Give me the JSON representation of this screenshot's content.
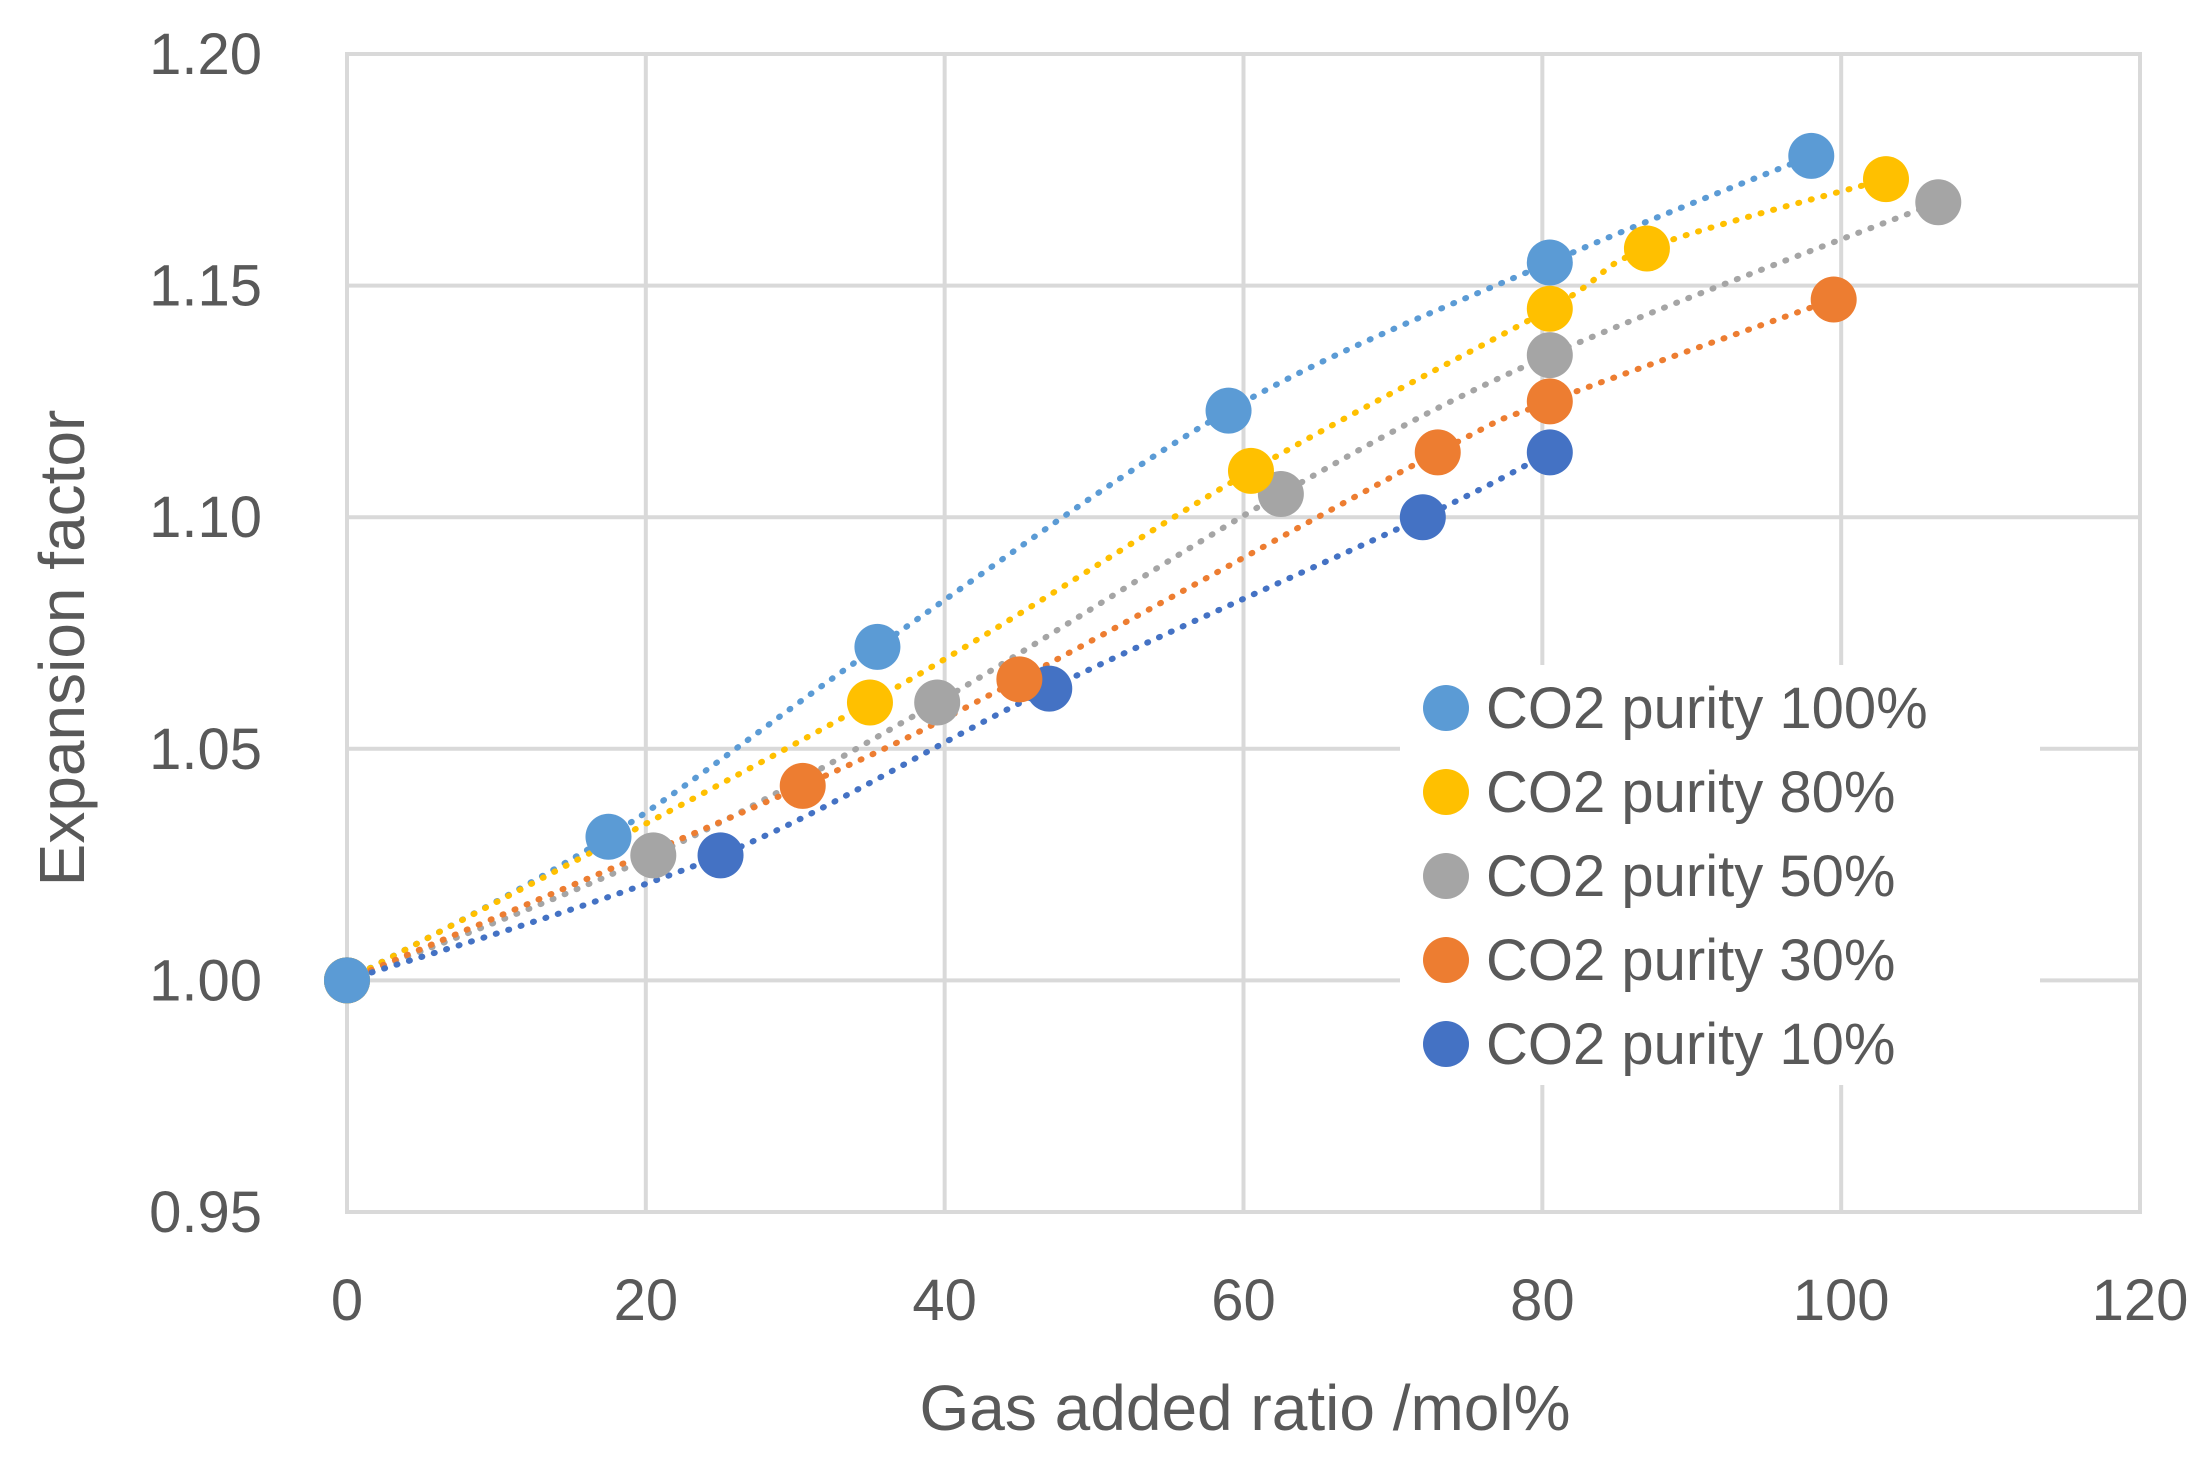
{
  "chart_data": {
    "type": "scatter",
    "title": "",
    "xlabel": "Gas added ratio /mol%",
    "ylabel": "Expansion factor",
    "xlim": [
      0,
      120
    ],
    "ylim": [
      0.95,
      1.2
    ],
    "x_ticks": [
      0,
      20,
      40,
      60,
      80,
      100,
      120
    ],
    "y_ticks": [
      0.95,
      1.0,
      1.05,
      1.1,
      1.15,
      1.2
    ],
    "x_tick_labels": [
      "0",
      "20",
      "40",
      "60",
      "80",
      "100",
      "120"
    ],
    "y_tick_labels": [
      "0.95",
      "1.00",
      "1.05",
      "1.10",
      "1.15",
      "1.20"
    ],
    "grid": true,
    "legend_position": "lower-right",
    "series": [
      {
        "name": "CO2 purity 100%",
        "color": "#5B9BD5",
        "points": [
          [
            0,
            1.0
          ],
          [
            17.5,
            1.031
          ],
          [
            35.5,
            1.072
          ],
          [
            59,
            1.123
          ],
          [
            80.5,
            1.155
          ],
          [
            98,
            1.178
          ]
        ]
      },
      {
        "name": "CO2 purity 80%",
        "color": "#FFC000",
        "points": [
          [
            0,
            1.0
          ],
          [
            35,
            1.06
          ],
          [
            60.5,
            1.11
          ],
          [
            80.5,
            1.145
          ],
          [
            87,
            1.158
          ],
          [
            103,
            1.173
          ]
        ]
      },
      {
        "name": "CO2 purity 50%",
        "color": "#A5A5A5",
        "points": [
          [
            0,
            1.0
          ],
          [
            20.5,
            1.027
          ],
          [
            39.5,
            1.06
          ],
          [
            62.5,
            1.105
          ],
          [
            80.5,
            1.135
          ],
          [
            106.5,
            1.168
          ]
        ]
      },
      {
        "name": "CO2 purity 30%",
        "color": "#ED7D31",
        "points": [
          [
            0,
            1.0
          ],
          [
            30.5,
            1.042
          ],
          [
            45,
            1.065
          ],
          [
            73,
            1.114
          ],
          [
            80.5,
            1.125
          ],
          [
            99.5,
            1.147
          ]
        ]
      },
      {
        "name": "CO2 purity 10%",
        "color": "#4472C4",
        "points": [
          [
            0,
            1.0
          ],
          [
            25,
            1.027
          ],
          [
            47,
            1.063
          ],
          [
            72,
            1.1
          ],
          [
            80.5,
            1.114
          ]
        ]
      }
    ]
  }
}
